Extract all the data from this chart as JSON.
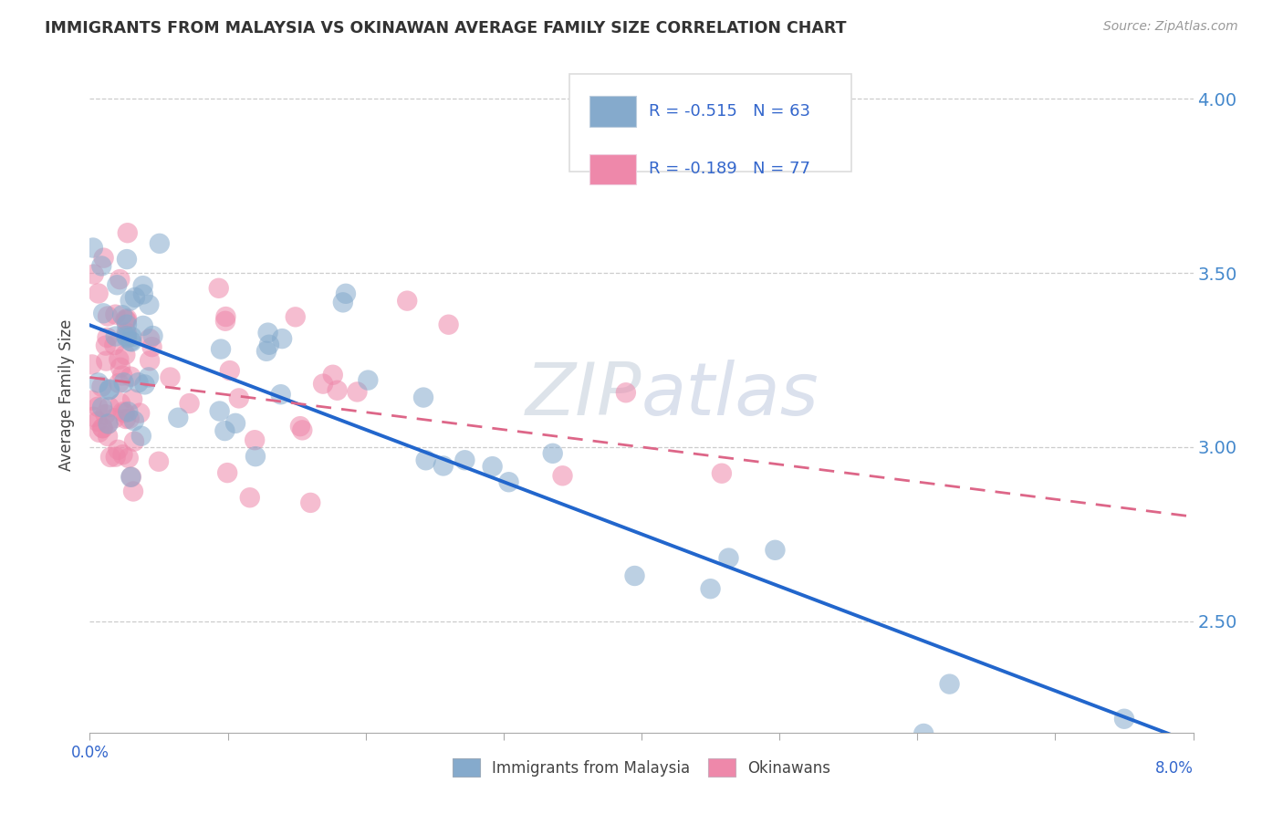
{
  "title": "IMMIGRANTS FROM MALAYSIA VS OKINAWAN AVERAGE FAMILY SIZE CORRELATION CHART",
  "source": "Source: ZipAtlas.com",
  "ylabel": "Average Family Size",
  "yticks": [
    2.5,
    3.0,
    3.5,
    4.0
  ],
  "xlim": [
    0.0,
    0.08
  ],
  "ylim": [
    2.18,
    4.12
  ],
  "legend_series1": "Immigrants from Malaysia",
  "legend_series2": "Okinawans",
  "blue_color": "#85AACC",
  "pink_color": "#EE88AA",
  "trendline_blue": "#2266CC",
  "trendline_pink": "#DD6688",
  "watermark_color": "#BBCCDD",
  "watermark_alpha": 0.5,
  "legend_text_color": "#3366CC",
  "ytick_color": "#4488CC",
  "blue_intercept": 3.35,
  "blue_slope": -15.0,
  "pink_intercept": 3.2,
  "pink_slope": -5.0
}
